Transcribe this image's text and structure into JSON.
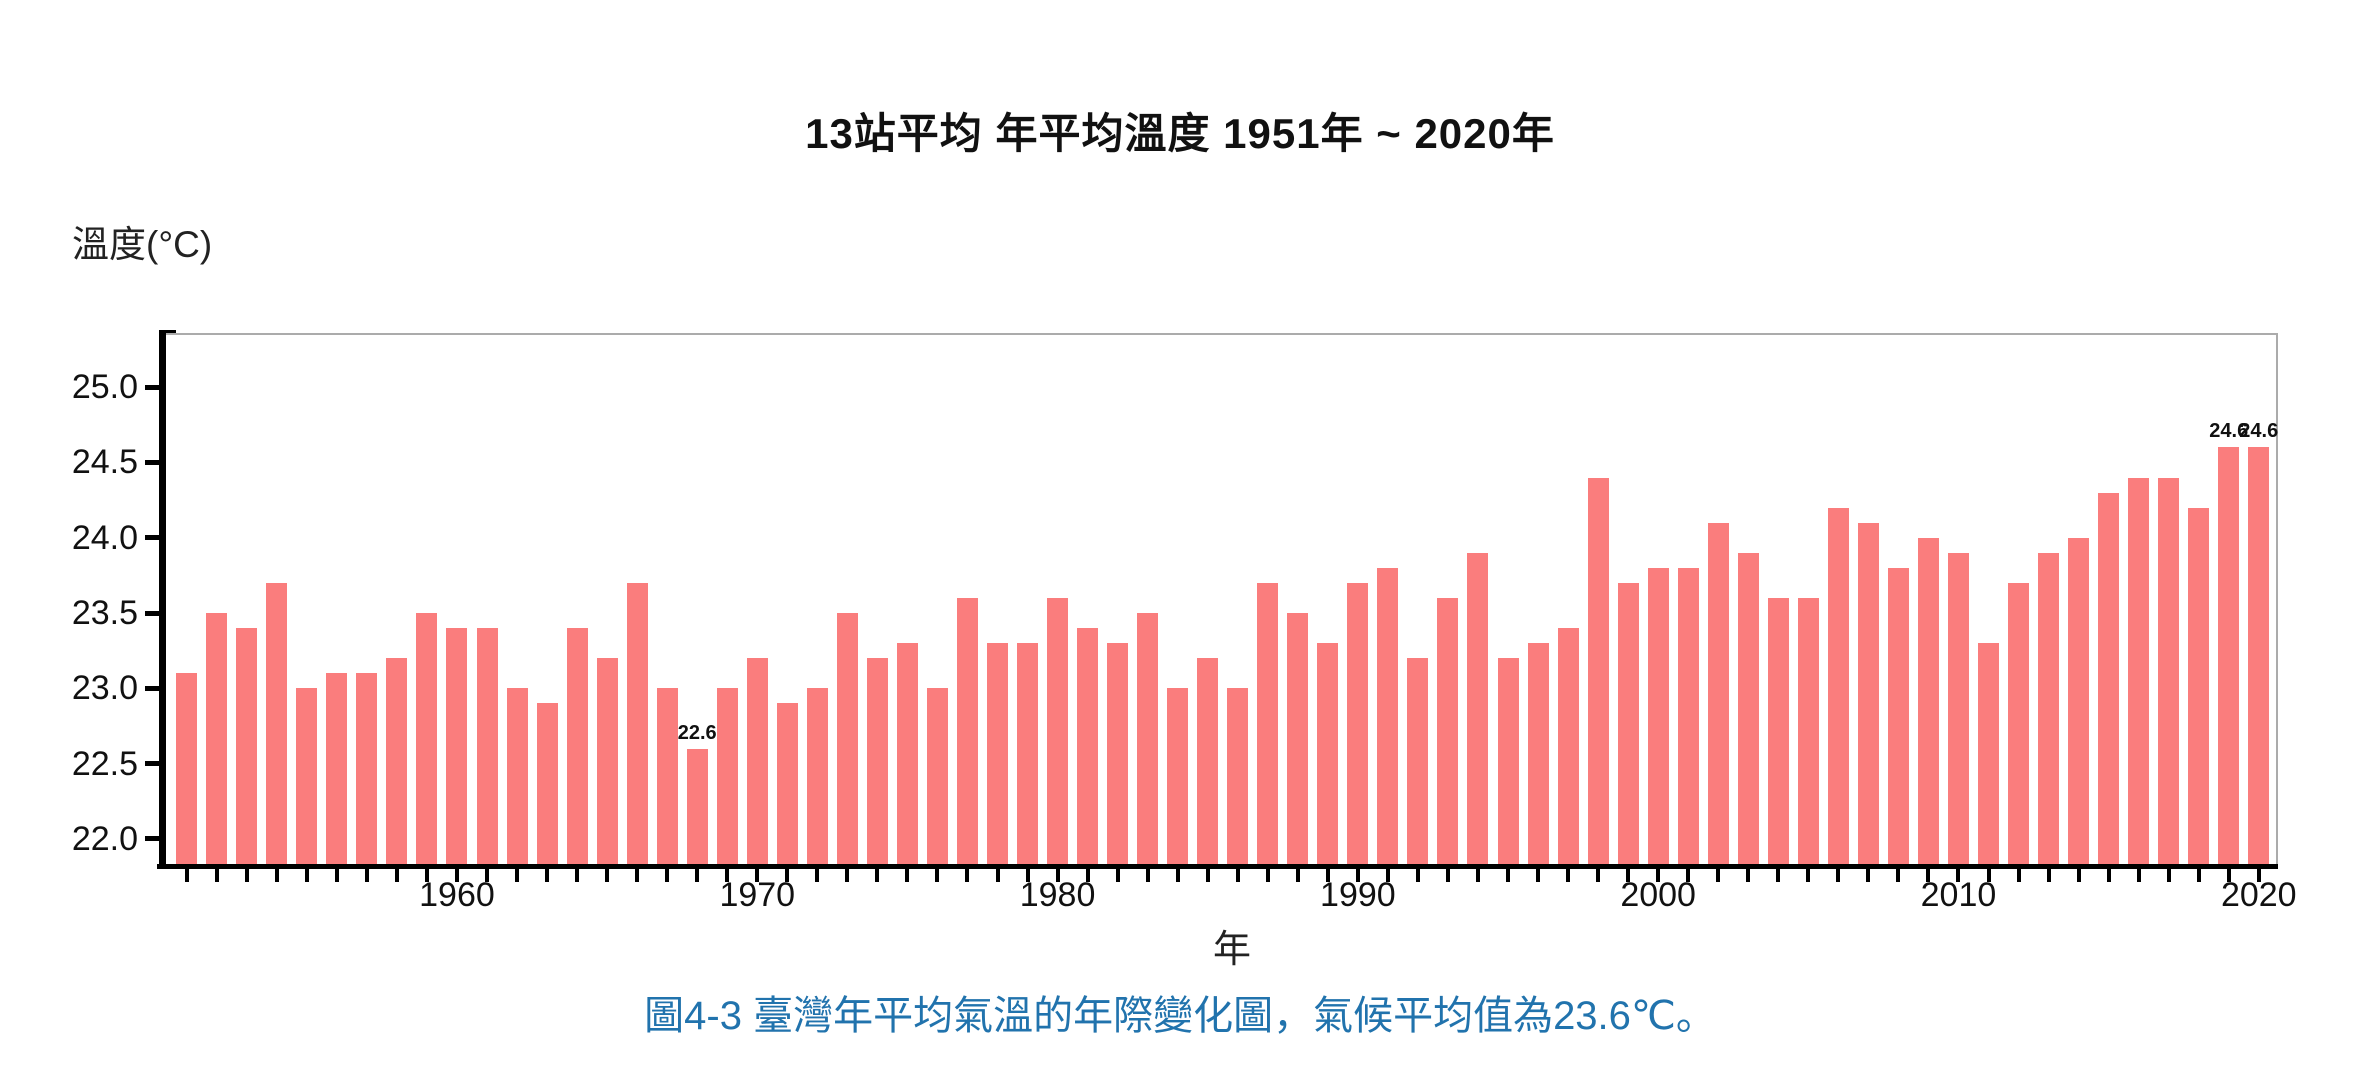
{
  "title": "13站平均 年平均溫度 1951年 ~ 2020年",
  "y_axis_title": "溫度(°C)",
  "x_axis_title": "年",
  "caption": "圖4-3 臺灣年平均氣溫的年際變化圖，氣候平均值為23.6℃。",
  "colors": {
    "bar": "#FA7D7D",
    "caption_text": "#2173AD",
    "axis": "#000000",
    "plot_border": "#ABABAB",
    "tick_label": "#111111"
  },
  "chart_data": {
    "type": "bar",
    "title": "13站平均 年平均溫度 1951年 ~ 2020年",
    "xlabel": "年",
    "ylabel": "溫度(°C)",
    "grid": false,
    "legend": null,
    "ylim": [
      21.82,
      25.36
    ],
    "yticks": [
      22.0,
      22.5,
      23.0,
      23.5,
      24.0,
      24.5,
      25.0
    ],
    "xticks_labeled": [
      1960,
      1970,
      1980,
      1990,
      2000,
      2010,
      2020
    ],
    "bar_labels": {
      "1968": "22.6",
      "2019": "24.6",
      "2020": "24.6"
    },
    "years": [
      1951,
      1952,
      1953,
      1954,
      1955,
      1956,
      1957,
      1958,
      1959,
      1960,
      1961,
      1962,
      1963,
      1964,
      1965,
      1966,
      1967,
      1968,
      1969,
      1970,
      1971,
      1972,
      1973,
      1974,
      1975,
      1976,
      1977,
      1978,
      1979,
      1980,
      1981,
      1982,
      1983,
      1984,
      1985,
      1986,
      1987,
      1988,
      1989,
      1990,
      1991,
      1992,
      1993,
      1994,
      1995,
      1996,
      1997,
      1998,
      1999,
      2000,
      2001,
      2002,
      2003,
      2004,
      2005,
      2006,
      2007,
      2008,
      2009,
      2010,
      2011,
      2012,
      2013,
      2014,
      2015,
      2016,
      2017,
      2018,
      2019,
      2020
    ],
    "values": [
      23.1,
      23.5,
      23.4,
      23.7,
      23.0,
      23.1,
      23.1,
      23.2,
      23.5,
      23.4,
      23.4,
      23.0,
      22.9,
      23.4,
      23.2,
      23.7,
      23.0,
      22.6,
      23.0,
      23.2,
      22.9,
      23.0,
      23.5,
      23.2,
      23.3,
      23.0,
      23.6,
      23.3,
      23.3,
      23.6,
      23.4,
      23.3,
      23.5,
      23.0,
      23.2,
      23.0,
      23.7,
      23.5,
      23.3,
      23.7,
      23.8,
      23.2,
      23.6,
      23.9,
      23.2,
      23.3,
      23.4,
      24.4,
      23.7,
      23.8,
      23.8,
      24.1,
      23.9,
      23.6,
      23.6,
      24.2,
      24.1,
      23.8,
      24.0,
      23.9,
      23.3,
      23.7,
      23.9,
      24.0,
      24.3,
      24.4,
      24.4,
      24.2,
      24.6,
      24.6
    ]
  }
}
